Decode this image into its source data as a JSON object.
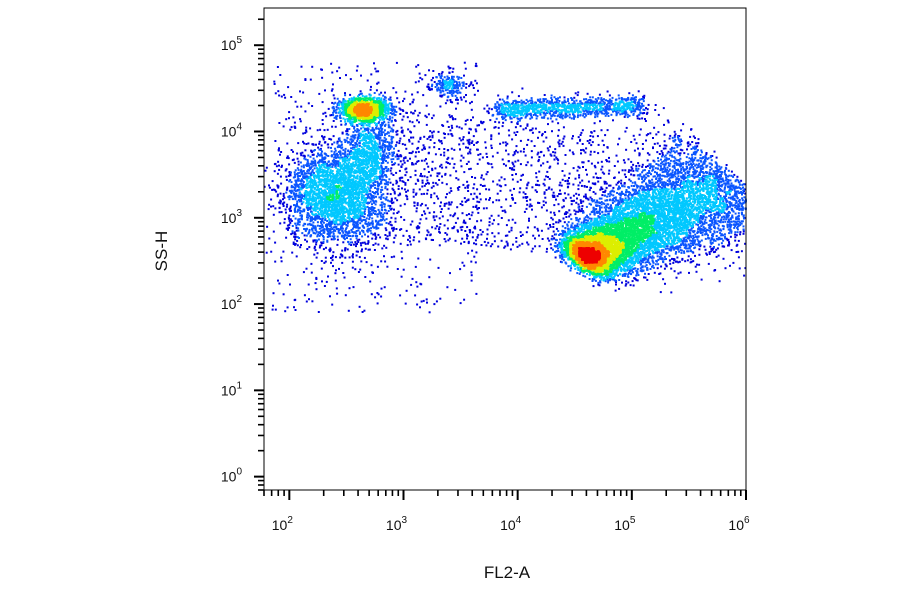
{
  "chart_data": {
    "type": "scatter",
    "plot_style": "density-colored dot plot (flow cytometry)",
    "xlabel": "FL2-A",
    "ylabel": "SS-H",
    "x_scale": "log",
    "y_scale": "log",
    "xlim": [
      60,
      1000000
    ],
    "ylim": [
      0.7,
      270000
    ],
    "x_ticks": [
      {
        "value": 100,
        "base": "10",
        "exp": "2"
      },
      {
        "value": 1000,
        "base": "10",
        "exp": "3"
      },
      {
        "value": 10000,
        "base": "10",
        "exp": "4"
      },
      {
        "value": 100000,
        "base": "10",
        "exp": "5"
      },
      {
        "value": 1000000,
        "base": "10",
        "exp": "6"
      }
    ],
    "y_ticks": [
      {
        "value": 1,
        "base": "10",
        "exp": "0"
      },
      {
        "value": 10,
        "base": "10",
        "exp": "1"
      },
      {
        "value": 100,
        "base": "10",
        "exp": "2"
      },
      {
        "value": 1000,
        "base": "10",
        "exp": "3"
      },
      {
        "value": 10000,
        "base": "10",
        "exp": "4"
      },
      {
        "value": 100000,
        "base": "10",
        "exp": "5"
      }
    ],
    "grid": false,
    "legend": "none",
    "density_colors": [
      "#0000dd",
      "#0a55ff",
      "#00c8ff",
      "#00ee66",
      "#ddee00",
      "#ff8800",
      "#ee0000"
    ],
    "populations": [
      {
        "x": 37000,
        "y": 330,
        "count": 9000
      },
      {
        "x": 250,
        "y": 1800,
        "count": 2800
      },
      {
        "x": 450,
        "y": 18000,
        "count": 1300
      },
      {
        "x": 500,
        "y": 6000,
        "count": 700
      },
      {
        "x": 2500,
        "y": 35000,
        "count": 200
      },
      {
        "x": 70000,
        "y": 19000,
        "count": 1100
      },
      {
        "x": 5000,
        "y": 8000,
        "count": 1100
      }
    ]
  }
}
